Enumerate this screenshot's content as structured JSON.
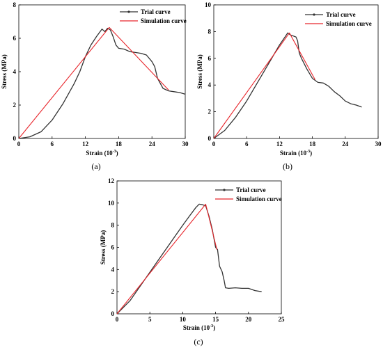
{
  "chart_data": [
    {
      "type": "line",
      "panel": "(a)",
      "xlabel": "Strain (10",
      "xlabel_sup": "-3",
      "xlabel_end": ")",
      "ylabel": "Stress (MPa)",
      "xlim": [
        0,
        30
      ],
      "ylim": [
        0,
        8
      ],
      "xticks": [
        0,
        6,
        12,
        18,
        24,
        30
      ],
      "yticks": [
        0,
        2,
        4,
        6,
        8
      ],
      "legend": "top-right",
      "series": [
        {
          "name": "Trial curve",
          "color": "#333333",
          "x": [
            0,
            2,
            4,
            6,
            8,
            10,
            11,
            12,
            13,
            14,
            15,
            15.5,
            16,
            16.5,
            17,
            17.5,
            18,
            19,
            20,
            21,
            22,
            23,
            24,
            24.5,
            25,
            26,
            27,
            28,
            29,
            30
          ],
          "y": [
            0,
            0.1,
            0.4,
            1.1,
            2.1,
            3.3,
            4.0,
            4.9,
            5.6,
            6.1,
            6.55,
            6.4,
            6.6,
            6.5,
            6.1,
            5.6,
            5.4,
            5.35,
            5.2,
            5.15,
            5.1,
            5.0,
            4.6,
            4.3,
            3.6,
            3.0,
            2.85,
            2.8,
            2.75,
            2.65
          ]
        },
        {
          "name": "Simulation curve",
          "color": "#e8262c",
          "x": [
            0,
            16.3,
            27
          ],
          "y": [
            0,
            6.65,
            2.9
          ]
        }
      ]
    },
    {
      "type": "line",
      "panel": "(b)",
      "xlabel": "Strain (10",
      "xlabel_sup": "-3",
      "xlabel_end": ")",
      "ylabel": "Stress (MPa)",
      "xlim": [
        0,
        30
      ],
      "ylim": [
        0,
        10
      ],
      "xticks": [
        0,
        6,
        12,
        18,
        24,
        30
      ],
      "yticks": [
        0,
        2,
        4,
        6,
        8,
        10
      ],
      "legend": "top-right",
      "series": [
        {
          "name": "Trial curve",
          "color": "#333333",
          "x": [
            0,
            2,
            4,
            6,
            8,
            10,
            12,
            13,
            13.5,
            14,
            15,
            15.3,
            15.6,
            16,
            17,
            18,
            19,
            20,
            21,
            22,
            23,
            24,
            25,
            26,
            27
          ],
          "y": [
            0,
            0.6,
            1.6,
            2.8,
            4.2,
            5.6,
            7.0,
            7.6,
            7.9,
            7.75,
            7.6,
            7.3,
            6.4,
            6.0,
            5.2,
            4.5,
            4.2,
            4.15,
            3.9,
            3.5,
            3.2,
            2.8,
            2.6,
            2.5,
            2.35
          ]
        },
        {
          "name": "Simulation curve",
          "color": "#e8262c",
          "x": [
            0,
            13.8,
            18.5
          ],
          "y": [
            0,
            7.9,
            4.4
          ]
        }
      ]
    },
    {
      "type": "line",
      "panel": "(c)",
      "xlabel": "Strain (10",
      "xlabel_sup": "-3",
      "xlabel_end": ")",
      "ylabel": "Stress (MPa)",
      "xlim": [
        0,
        25
      ],
      "ylim": [
        0,
        12
      ],
      "xticks": [
        0,
        5,
        10,
        15,
        20,
        25
      ],
      "yticks": [
        0,
        2,
        4,
        6,
        8,
        10,
        12
      ],
      "legend": "top-right",
      "series": [
        {
          "name": "Trial curve",
          "color": "#333333",
          "x": [
            0,
            2,
            4,
            6,
            8,
            10,
            11,
            12,
            12.5,
            13,
            13.5,
            14,
            14.5,
            15,
            15.3,
            15.6,
            16,
            16.3,
            16.5,
            17,
            18,
            19,
            20,
            21,
            22
          ],
          "y": [
            0,
            1.2,
            2.9,
            4.6,
            6.3,
            8.0,
            8.8,
            9.6,
            9.9,
            9.85,
            9.75,
            8.8,
            7.6,
            6.0,
            5.8,
            4.3,
            3.8,
            3.0,
            2.35,
            2.3,
            2.35,
            2.3,
            2.3,
            2.1,
            2.0
          ]
        },
        {
          "name": "Simulation curve",
          "color": "#e8262c",
          "x": [
            0,
            13.5,
            15.2
          ],
          "y": [
            0,
            9.9,
            5.8
          ]
        }
      ]
    }
  ]
}
